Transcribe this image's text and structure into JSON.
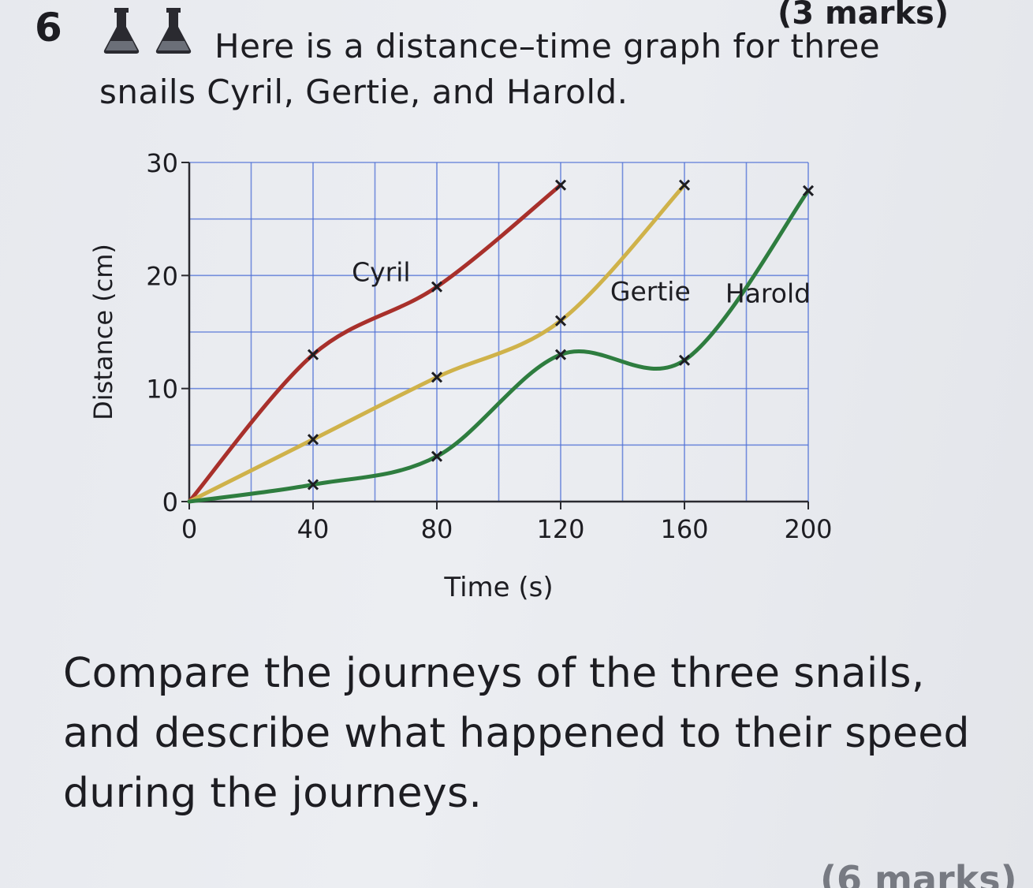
{
  "question": {
    "number": "6",
    "marks": "(3 marks)",
    "prompt": "Here is a distance–time graph for three snails Cyril, Gertie, and Harold.",
    "task": "Compare the journeys of the three snails, and describe what happened to their speed during the journeys.",
    "next_marks": "(6 marks)",
    "icons": [
      "flask-icon",
      "flask-icon"
    ]
  },
  "colors": {
    "grid": "#4d6fd6",
    "cyril": "#a8302b",
    "gertie": "#cfb24a",
    "harold": "#2e7d3f",
    "markers": "#1d1d22"
  },
  "chart_data": {
    "type": "line",
    "xlabel": "Time (s)",
    "ylabel": "Distance (cm)",
    "xlim": [
      0,
      200
    ],
    "ylim": [
      0,
      30
    ],
    "x_ticks": [
      "0",
      "40",
      "80",
      "120",
      "160",
      "200"
    ],
    "y_ticks": [
      "0",
      "10",
      "20",
      "30"
    ],
    "grid": true,
    "series": [
      {
        "name": "Cyril",
        "points": [
          [
            0,
            0
          ],
          [
            40,
            13
          ],
          [
            80,
            19
          ],
          [
            120,
            28
          ]
        ]
      },
      {
        "name": "Gertie",
        "points": [
          [
            0,
            0
          ],
          [
            40,
            5.5
          ],
          [
            80,
            11
          ],
          [
            120,
            16
          ],
          [
            160,
            28
          ]
        ]
      },
      {
        "name": "Harold",
        "points": [
          [
            0,
            0
          ],
          [
            40,
            1.5
          ],
          [
            80,
            4
          ],
          [
            120,
            13
          ],
          [
            160,
            12.5
          ],
          [
            200,
            27.5
          ]
        ]
      }
    ]
  }
}
